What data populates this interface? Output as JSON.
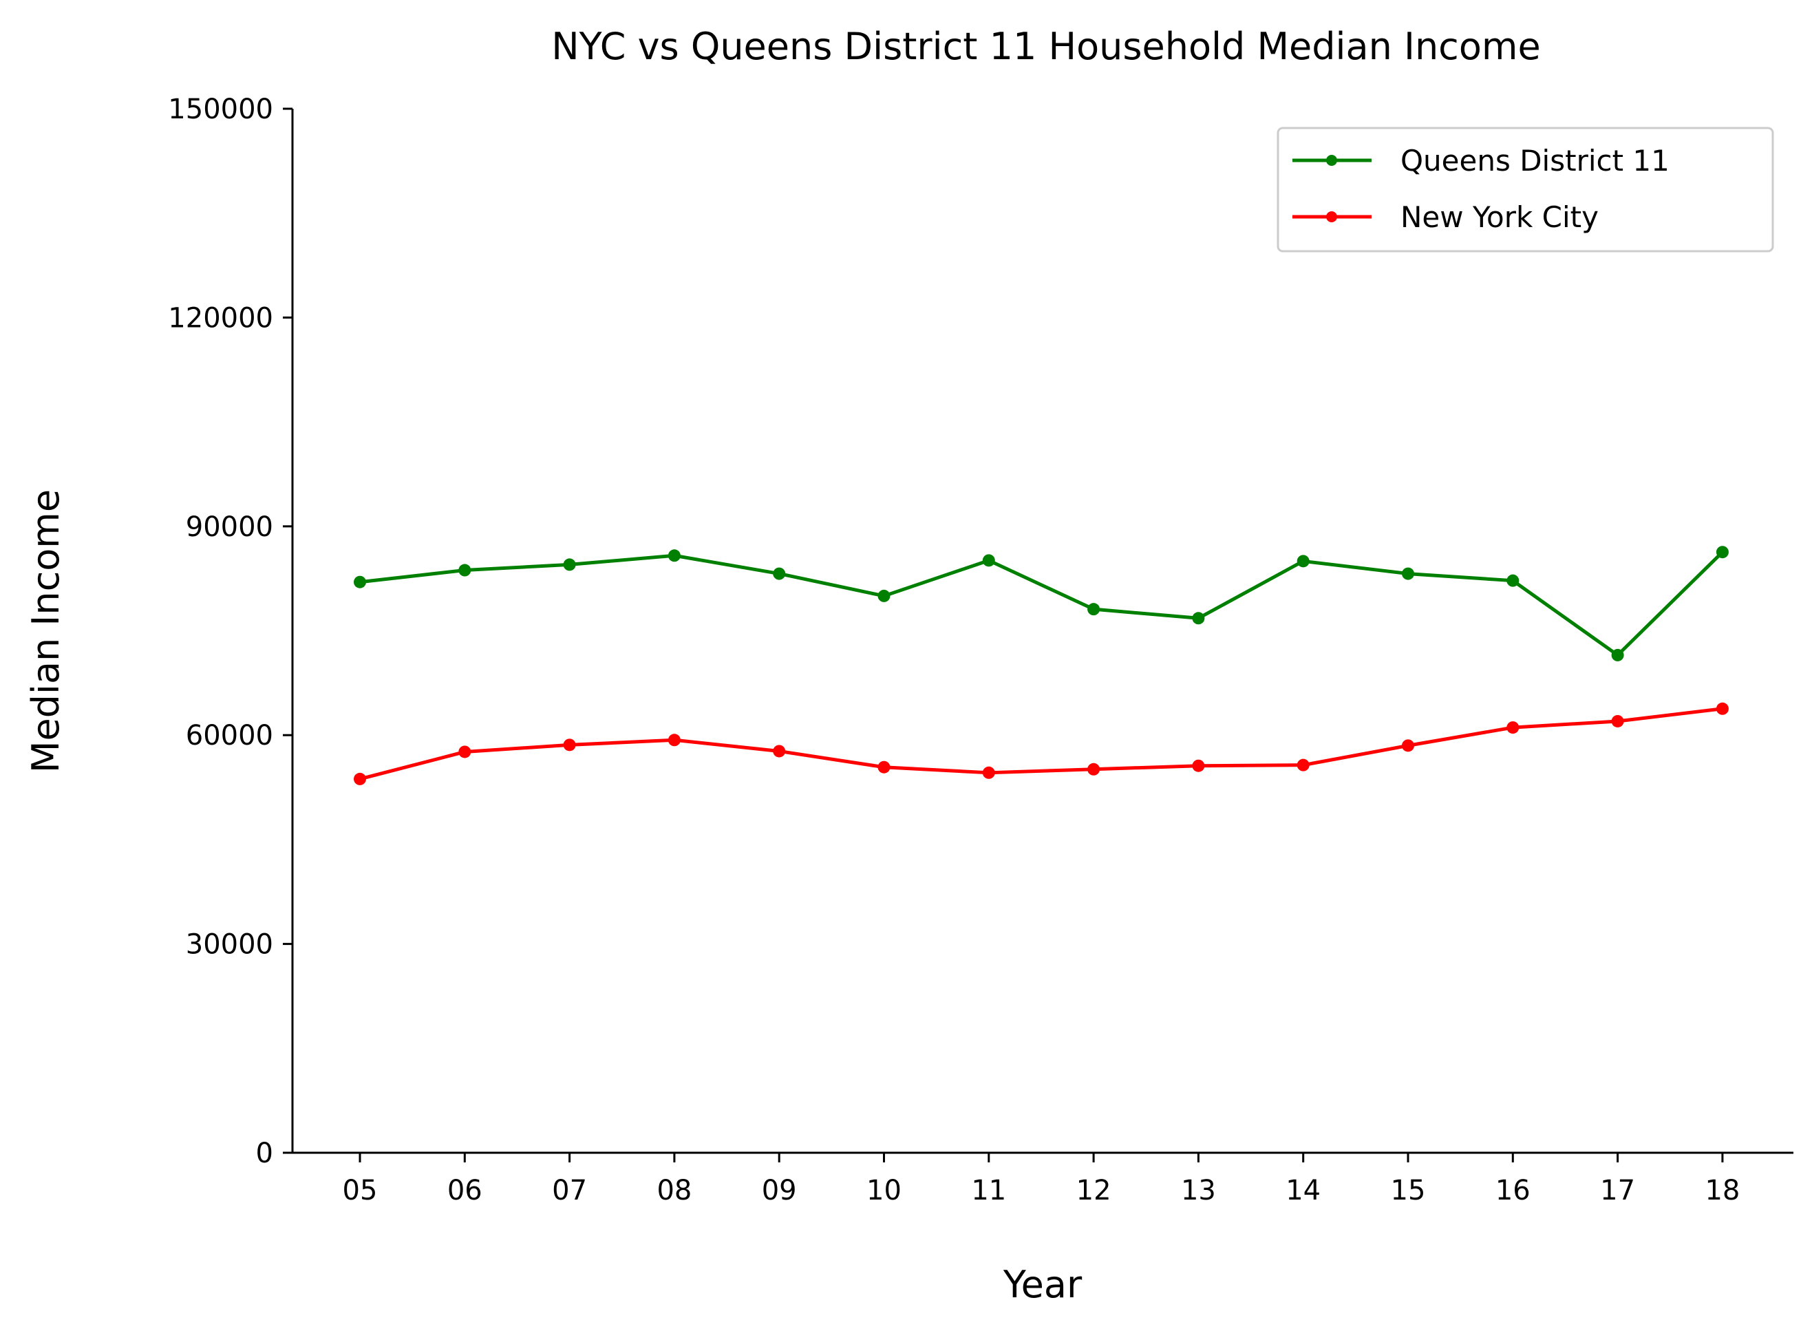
{
  "chart_data": {
    "type": "line",
    "title": "NYC vs Queens District 11 Household Median Income",
    "xlabel": "Year",
    "ylabel": "Median Income",
    "categories": [
      "05",
      "06",
      "07",
      "08",
      "09",
      "10",
      "11",
      "12",
      "13",
      "14",
      "15",
      "16",
      "17",
      "18"
    ],
    "ylim": [
      0,
      150000
    ],
    "yticks": [
      0,
      30000,
      60000,
      90000,
      120000,
      150000
    ],
    "grid": false,
    "legend_position": "top-right",
    "series": [
      {
        "name": "Queens District 11",
        "color": "#008000",
        "values": [
          82000,
          83700,
          84500,
          85800,
          83200,
          80000,
          85100,
          78100,
          76800,
          85000,
          83200,
          82200,
          71500,
          86300
        ]
      },
      {
        "name": "New York City",
        "color": "#ff0000",
        "values": [
          53700,
          57600,
          58600,
          59300,
          57700,
          55400,
          54600,
          55100,
          55600,
          55700,
          58500,
          61100,
          62000,
          63800
        ]
      }
    ]
  }
}
